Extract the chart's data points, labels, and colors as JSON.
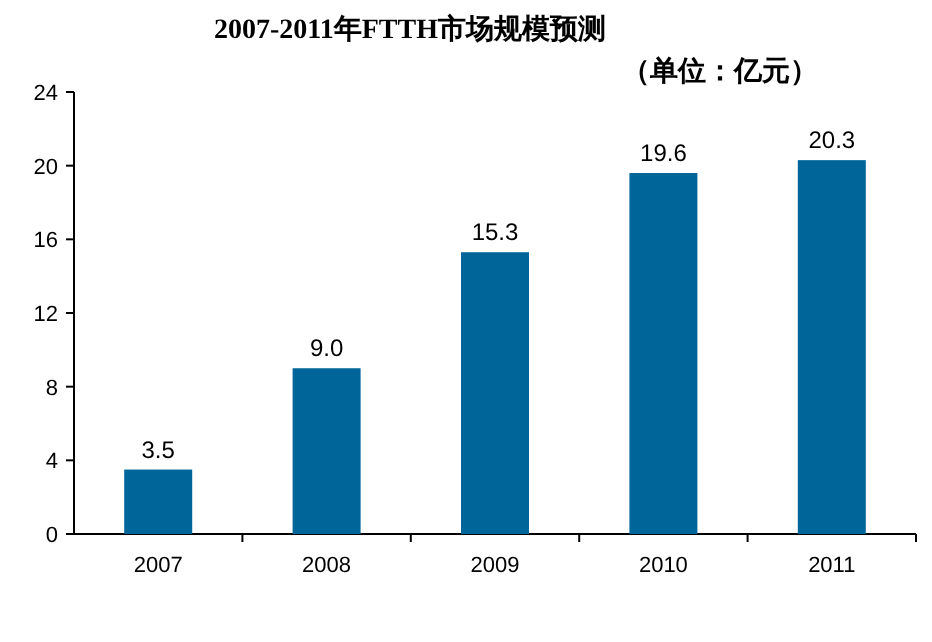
{
  "chart_data": {
    "type": "bar",
    "title": "2007-2011年FTTH市场规模预测",
    "subtitle": "（单位：亿元）",
    "categories": [
      "2007",
      "2008",
      "2009",
      "2010",
      "2011"
    ],
    "values": [
      3.5,
      9.0,
      15.3,
      19.6,
      20.3
    ],
    "value_labels": [
      "3.5",
      "9.0",
      "15.3",
      "19.6",
      "20.3"
    ],
    "color": "#006699",
    "ylim": [
      0,
      24
    ],
    "yticks": [
      0,
      4,
      8,
      12,
      16,
      20,
      24
    ],
    "grid": false
  }
}
